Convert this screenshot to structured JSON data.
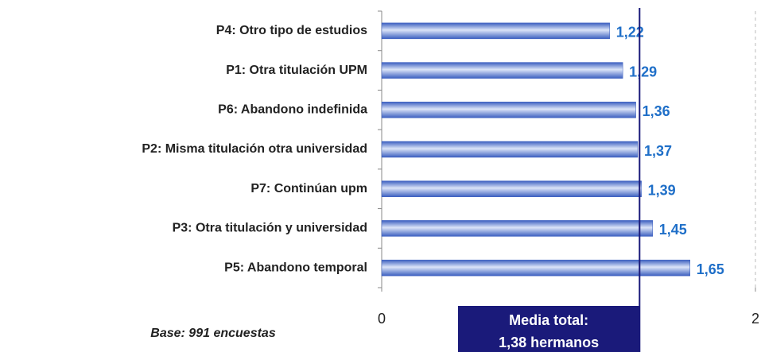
{
  "chart_data": {
    "type": "bar",
    "orientation": "horizontal",
    "categories": [
      "P4: Otro tipo de estudios",
      "P1: Otra titulación UPM",
      "P6: Abandono indefinida",
      "P2: Misma titulación otra universidad",
      "P7: Continúan upm",
      "P3: Otra titulación y universidad",
      "P5: Abandono temporal"
    ],
    "values": [
      1.22,
      1.29,
      1.36,
      1.37,
      1.39,
      1.45,
      1.65
    ],
    "value_labels": [
      "1,22",
      "1,29",
      "1,36",
      "1,37",
      "1,39",
      "1,45",
      "1,65"
    ],
    "color": "#3b5fc0",
    "xlim": [
      0,
      2
    ],
    "xticks": [
      0,
      2
    ],
    "reference_line": {
      "value": 1.38,
      "color": "#1a1a7a",
      "label_lines": [
        "Media total:",
        "1,38 hermanos"
      ]
    },
    "note": "Base: 991 encuestas"
  }
}
